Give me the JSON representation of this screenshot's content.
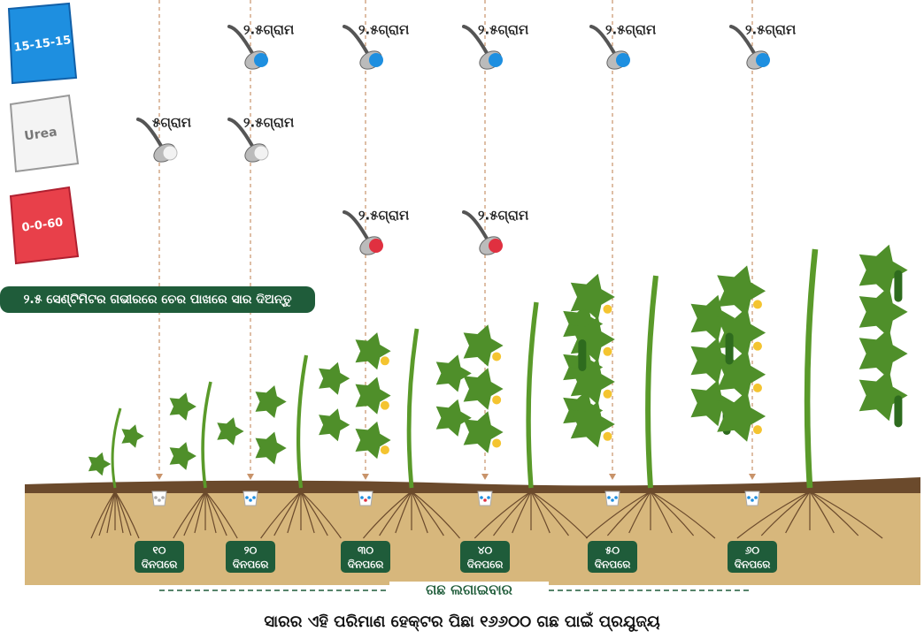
{
  "bags": [
    {
      "label": "15-15-15",
      "doses": [
        null,
        "୨.୫ଗ୍ରାମ",
        "୨.୫ଗ୍ରାମ",
        "୨.୫ଗ୍ରାମ",
        "୨.୫ଗ୍ରାମ",
        "୨.୫ଗ୍ରାମ"
      ]
    },
    {
      "label": "Urea",
      "doses": [
        "୫ଗ୍ରାମ",
        "୨.୫ଗ୍ରାମ",
        null,
        null,
        null,
        null
      ]
    },
    {
      "label": "0-0-60",
      "doses": [
        null,
        null,
        "୨.୫ଗ୍ରାମ",
        "୨.୫ଗ୍ରାମ",
        null,
        null
      ]
    }
  ],
  "banner": "୨.୫ ସେଣ୍ଟିମିଟର ଗଭୀରରେ ଚେର ପାଖରେ ସାର ଦିଅନ୍ତୁ",
  "days": [
    {
      "number": "୧୦",
      "label": "ଦିନପରେ"
    },
    {
      "number": "୨୦",
      "label": "ଦିନପରେ"
    },
    {
      "number": "୩୦",
      "label": "ଦିନପରେ"
    },
    {
      "number": "୪୦",
      "label": "ଦିନପରେ"
    },
    {
      "number": "୫୦",
      "label": "ଦିନପରେ"
    },
    {
      "number": "୬୦",
      "label": "ଦିନପରେ"
    }
  ],
  "timeline_label": "ଗଛ ଲଗାଇବାର",
  "footer": "ସାରର ଏହି ପରିମାଣ ହେକ୍ଟର ପିଛା ୧୬୬୦୦ ଗଛ ପାଇଁ ପ୍ରଯୁଜ୍ୟ"
}
